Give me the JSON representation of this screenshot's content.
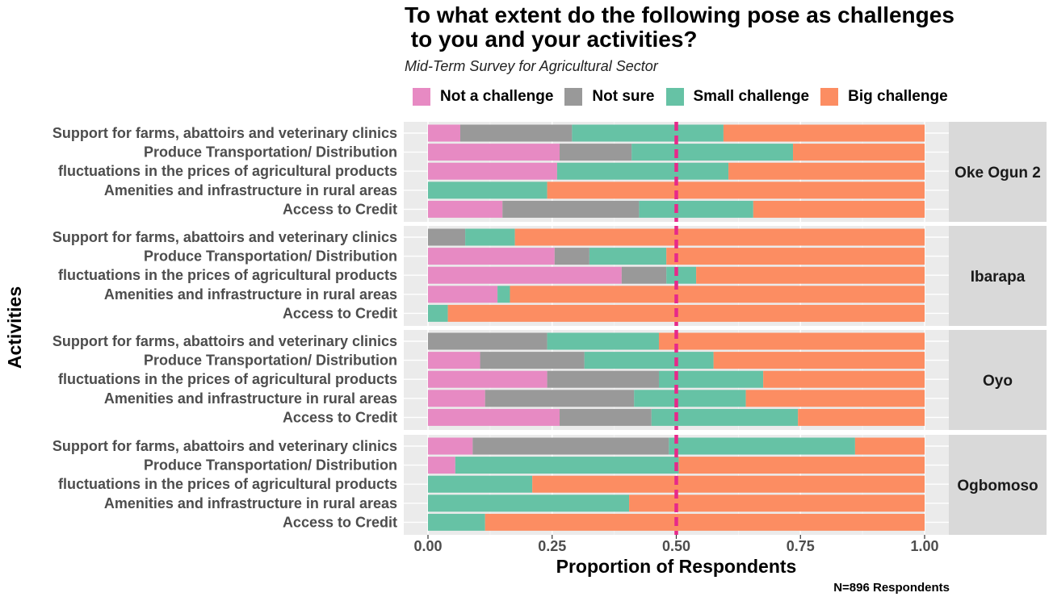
{
  "chart_data": {
    "type": "bar",
    "orientation": "horizontal",
    "stacked": true,
    "title": "To what extent do the following pose as challenges\n to you and your activities?",
    "subtitle": "Mid-Term Survey for Agricultural Sector",
    "xlabel": "Proportion of Respondents",
    "ylabel": "Activities",
    "caption": "N=896 Respondents",
    "xlim": [
      0,
      1
    ],
    "x_ticks": [
      "0.00",
      "0.25",
      "0.50",
      "0.75",
      "1.00"
    ],
    "x_tick_values": [
      0,
      0.25,
      0.5,
      0.75,
      1
    ],
    "reference_line": {
      "x": 0.5,
      "style": "dashed",
      "color": "#e7298a"
    },
    "legend_position": "top",
    "grid": true,
    "categories": [
      "Support for farms, abattoirs and veterinary clinics",
      "Produce Transportation/ Distribution",
      "fluctuations in the prices of agricultural products",
      "Amenities and infrastructure in rural areas",
      "Access to Credit"
    ],
    "series": [
      {
        "name": "Not a challenge",
        "color": "#e78ac3"
      },
      {
        "name": "Not sure",
        "color": "#999999"
      },
      {
        "name": "Small challenge",
        "color": "#66c2a5"
      },
      {
        "name": "Big challenge",
        "color": "#fc8d62"
      }
    ],
    "panels": [
      {
        "label": "Oke Ogun 2",
        "values": [
          [
            0.065,
            0.225,
            0.305,
            0.405
          ],
          [
            0.265,
            0.145,
            0.325,
            0.265
          ],
          [
            0.26,
            0.0,
            0.345,
            0.395
          ],
          [
            0.0,
            0.0,
            0.24,
            0.76
          ],
          [
            0.15,
            0.275,
            0.23,
            0.345
          ]
        ]
      },
      {
        "label": "Ibarapa",
        "values": [
          [
            0.0,
            0.075,
            0.1,
            0.825
          ],
          [
            0.255,
            0.07,
            0.155,
            0.52
          ],
          [
            0.39,
            0.09,
            0.06,
            0.46
          ],
          [
            0.14,
            0.0,
            0.025,
            0.835
          ],
          [
            0.0,
            0.0,
            0.04,
            0.96
          ]
        ]
      },
      {
        "label": "Oyo",
        "values": [
          [
            0.0,
            0.24,
            0.225,
            0.535
          ],
          [
            0.105,
            0.21,
            0.26,
            0.425
          ],
          [
            0.24,
            0.225,
            0.21,
            0.325
          ],
          [
            0.115,
            0.3,
            0.225,
            0.36
          ],
          [
            0.265,
            0.185,
            0.295,
            0.255
          ]
        ]
      },
      {
        "label": "Ogbomoso",
        "values": [
          [
            0.09,
            0.395,
            0.375,
            0.14
          ],
          [
            0.055,
            0.0,
            0.45,
            0.495
          ],
          [
            0.0,
            0.0,
            0.21,
            0.79
          ],
          [
            0.0,
            0.0,
            0.405,
            0.595
          ],
          [
            0.0,
            0.0,
            0.115,
            0.885
          ]
        ]
      }
    ]
  }
}
